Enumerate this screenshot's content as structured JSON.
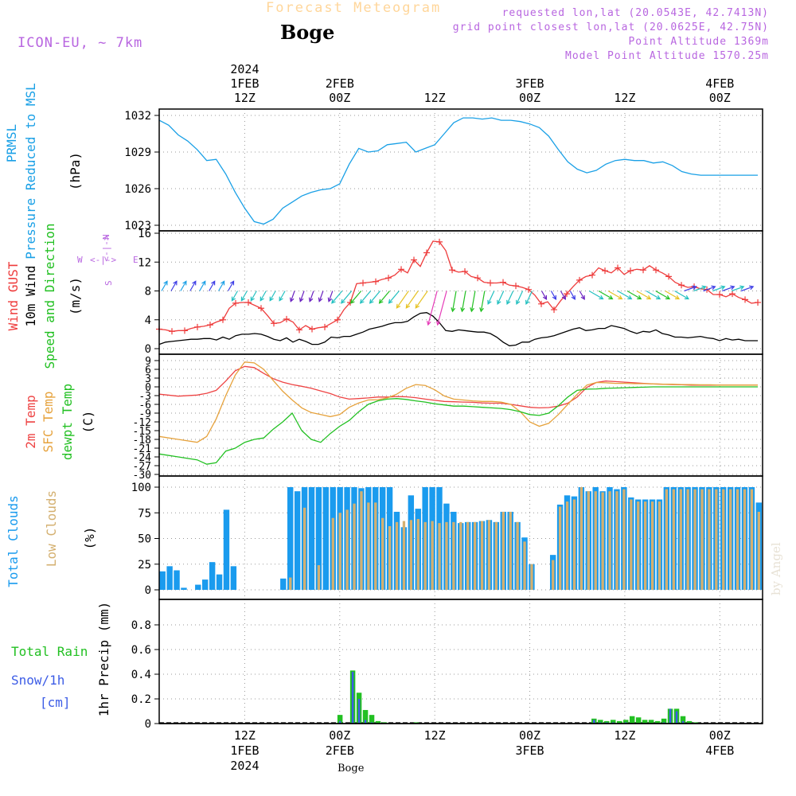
{
  "header": {
    "title": "Forecast Meteogram",
    "location": "Boge",
    "model": "ICON-EU, ~ 7km",
    "requested": "requested lon,lat (20.0543E, 42.7413N)",
    "grid_point": "grid point closest lon,lat (20.0625E, 42.75N)",
    "point_altitude": "Point Altitude 1369m",
    "model_altitude": "Model Point Altitude 1570.25m",
    "credit": "by Angel",
    "bottom_location": "Boge"
  },
  "colors": {
    "pressure": "#1aa0e6",
    "gust": "#ee3c3c",
    "wind": "#000000",
    "t2m": "#ee4444",
    "sfc": "#e6a23c",
    "dewpt": "#22c022",
    "total_clouds": "#1a9bee",
    "low_clouds": "#d4b070",
    "rain": "#22c022",
    "snow": "#3c5ce6",
    "grid": "#999999"
  },
  "chart_data": [
    {
      "type": "line",
      "title": "PRMSL Pressure Reduced to MSL",
      "ylabel_lines": [
        "PRMSL",
        "Pressure Reduced to MSL"
      ],
      "unit": "(hPa)",
      "ylim": [
        1022.5,
        1032.5
      ],
      "yticks": [
        1023,
        1026,
        1029,
        1032
      ],
      "series": [
        {
          "name": "PRMSL",
          "x_hours": [
            0,
            2,
            4,
            6,
            8,
            10,
            12,
            14,
            16,
            18,
            20,
            22,
            24,
            26,
            28,
            30,
            32,
            34,
            36,
            38,
            40,
            42,
            44,
            46,
            48,
            50,
            52,
            54,
            56,
            58,
            60,
            62,
            64,
            66,
            68,
            70,
            72,
            74,
            76,
            78,
            80,
            82,
            84,
            86,
            88,
            90,
            92,
            94,
            96,
            98,
            100,
            102,
            104,
            106,
            108,
            110,
            112,
            114,
            116,
            118,
            120,
            122,
            124,
            126
          ],
          "values": [
            1031.6,
            1031.2,
            1030.4,
            1029.9,
            1029.2,
            1028.3,
            1028.4,
            1027.2,
            1025.7,
            1024.4,
            1023.3,
            1023.1,
            1023.5,
            1024.4,
            1024.9,
            1025.4,
            1025.7,
            1025.9,
            1026.0,
            1026.4,
            1028.0,
            1029.3,
            1029.0,
            1029.1,
            1029.6,
            1029.7,
            1029.8,
            1029.0,
            1029.3,
            1029.6,
            1030.5,
            1031.4,
            1031.8,
            1031.8,
            1031.7,
            1031.8,
            1031.6,
            1031.6,
            1031.5,
            1031.3,
            1031.0,
            1030.3,
            1029.2,
            1028.2,
            1027.6,
            1027.3,
            1027.5,
            1028.0,
            1028.3,
            1028.4,
            1028.3,
            1028.3,
            1028.1,
            1028.2,
            1027.9,
            1027.4,
            1027.2,
            1027.1,
            1027.1,
            1027.1,
            1027.1,
            1027.1,
            1027.1,
            1027.1
          ]
        }
      ]
    },
    {
      "type": "line",
      "title": "Wind GUST / 10m Wind Speed and Direction",
      "ylabel_lines": [
        "Wind GUST",
        "10m Wind",
        "Speed and Direction"
      ],
      "unit": "(m/s)",
      "compass": {
        "n": "N",
        "s": "S",
        "e": "E",
        "w": "W"
      },
      "ylim": [
        -0.3,
        16
      ],
      "yticks": [
        0,
        4,
        8,
        12,
        16
      ],
      "series": [
        {
          "name": "Wind GUST",
          "values": [
            2.7,
            2.6,
            2.4,
            2.5,
            2.5,
            2.8,
            3.0,
            3.1,
            3.3,
            3.7,
            4.0,
            5.6,
            6.3,
            6.4,
            6.4,
            6.0,
            5.6,
            4.6,
            3.5,
            3.6,
            4.1,
            3.7,
            2.6,
            3.2,
            2.7,
            2.9,
            3.0,
            3.5,
            4.0,
            5.4,
            6.4,
            9.0,
            9.1,
            9.2,
            9.3,
            9.6,
            9.8,
            10.2,
            11.0,
            10.5,
            12.3,
            11.4,
            13.3,
            14.9,
            14.8,
            13.6,
            10.9,
            10.6,
            10.7,
            10.0,
            9.8,
            9.2,
            9.1,
            9.1,
            9.2,
            8.8,
            8.7,
            8.5,
            8.2,
            7.4,
            6.2,
            6.5,
            5.4,
            6.6,
            7.6,
            8.6,
            9.5,
            10.0,
            10.2,
            11.2,
            10.8,
            10.5,
            11.2,
            10.3,
            10.8,
            11.0,
            10.9,
            11.5,
            10.9,
            10.5,
            10.0,
            9.2,
            8.8,
            8.5,
            8.6,
            8.3,
            8.2,
            7.5,
            7.5,
            7.2,
            7.6,
            7.1,
            6.8,
            6.3,
            6.4
          ]
        },
        {
          "name": "10m Wind",
          "values": [
            0.6,
            0.9,
            1.0,
            1.1,
            1.2,
            1.3,
            1.3,
            1.4,
            1.4,
            1.2,
            1.6,
            1.3,
            1.8,
            2.0,
            2.0,
            2.1,
            2.0,
            1.7,
            1.3,
            1.1,
            1.5,
            0.9,
            1.3,
            1.0,
            0.6,
            0.6,
            0.9,
            1.6,
            1.5,
            1.7,
            1.7,
            2.0,
            2.3,
            2.7,
            2.9,
            3.1,
            3.4,
            3.6,
            3.6,
            3.8,
            4.4,
            4.9,
            5.0,
            4.5,
            3.6,
            2.5,
            2.4,
            2.6,
            2.5,
            2.4,
            2.3,
            2.3,
            2.1,
            1.6,
            0.9,
            0.4,
            0.5,
            0.9,
            0.9,
            1.3,
            1.5,
            1.6,
            1.8,
            2.1,
            2.4,
            2.7,
            2.9,
            2.5,
            2.6,
            2.8,
            2.8,
            3.2,
            3.0,
            2.8,
            2.4,
            2.1,
            2.4,
            2.3,
            2.6,
            2.1,
            1.9,
            1.6,
            1.6,
            1.5,
            1.6,
            1.7,
            1.5,
            1.4,
            1.1,
            1.4,
            1.2,
            1.3,
            1.1,
            1.1,
            1.1
          ]
        }
      ]
    },
    {
      "type": "line",
      "title": "2m Temp / SFC Temp / dewpt Temp",
      "ylabel_lines": [
        "2m Temp",
        "SFC Temp",
        "dewpt Temp"
      ],
      "unit": "(C)",
      "ylim": [
        -30,
        10.5
      ],
      "yticks": [
        9,
        6,
        3,
        0,
        -3,
        -6,
        -9,
        -12,
        -15,
        -18,
        -21,
        -24,
        -27,
        -30
      ],
      "x_hours": [
        0,
        4,
        8,
        10,
        12,
        14,
        16,
        18,
        20,
        22,
        24,
        26,
        28,
        30,
        32,
        34,
        36,
        38,
        40,
        42,
        44,
        46,
        48,
        50,
        52,
        54,
        56,
        58,
        60,
        62,
        64,
        66,
        68,
        70,
        72,
        74,
        76,
        78,
        80,
        82,
        84,
        86,
        88,
        90,
        92,
        94,
        96,
        98,
        100,
        102,
        104,
        106,
        108,
        110,
        112,
        114,
        116,
        118,
        120,
        122,
        124,
        126
      ],
      "series": [
        {
          "name": "2m Temp",
          "values": [
            -2.5,
            -3.2,
            -2.8,
            -2.2,
            -1.2,
            2.0,
            5.5,
            7.0,
            6.6,
            4.6,
            2.8,
            1.6,
            0.8,
            0.2,
            -0.5,
            -1.4,
            -2.3,
            -3.5,
            -4.2,
            -4.0,
            -3.8,
            -3.5,
            -3.5,
            -3.3,
            -3.4,
            -3.7,
            -4.2,
            -4.6,
            -5.0,
            -5.1,
            -5.2,
            -5.3,
            -5.5,
            -5.6,
            -5.6,
            -6.0,
            -6.5,
            -7.0,
            -7.2,
            -7.1,
            -6.6,
            -5.6,
            -3.5,
            -0.2,
            1.5,
            2.0,
            1.8,
            1.6,
            1.4,
            1.2,
            1.0,
            0.9,
            0.8,
            0.7,
            0.6,
            0.6,
            0.6,
            0.6,
            0.6,
            0.6,
            0.6,
            0.6
          ]
        },
        {
          "name": "SFC Temp",
          "values": [
            -17.0,
            -18.0,
            -19.0,
            -17.0,
            -11.0,
            -3.0,
            4.0,
            8.5,
            8.2,
            6.0,
            2.2,
            -1.5,
            -4.5,
            -7.2,
            -8.8,
            -9.5,
            -10.2,
            -9.5,
            -7.0,
            -5.5,
            -4.5,
            -4.4,
            -3.8,
            -2.5,
            -0.5,
            0.8,
            0.5,
            -1.0,
            -3.1,
            -4.2,
            -4.5,
            -4.8,
            -5.0,
            -5.0,
            -5.2,
            -6.0,
            -8.5,
            -12.0,
            -13.5,
            -12.5,
            -9.5,
            -6.0,
            -2.5,
            0.6,
            1.5,
            1.4,
            1.2,
            1.2,
            1.1,
            1.1,
            1.0,
            0.9,
            0.9,
            0.8,
            0.8,
            0.7,
            0.7,
            0.6,
            0.6,
            0.6,
            0.6,
            0.6
          ]
        },
        {
          "name": "dewpt Temp",
          "values": [
            -23.0,
            -24.0,
            -25.0,
            -26.5,
            -26.0,
            -22.0,
            -21.0,
            -19.0,
            -18.0,
            -17.5,
            -14.5,
            -12.0,
            -9.0,
            -15.0,
            -18.0,
            -19.0,
            -16.0,
            -13.5,
            -11.5,
            -8.5,
            -6.0,
            -4.8,
            -4.2,
            -4.0,
            -4.3,
            -4.8,
            -5.2,
            -5.8,
            -6.2,
            -6.6,
            -6.6,
            -6.8,
            -7.0,
            -7.2,
            -7.4,
            -7.8,
            -8.5,
            -9.5,
            -9.8,
            -9.0,
            -6.5,
            -3.5,
            -1.2,
            -0.8,
            -0.7,
            -0.5,
            -0.4,
            -0.3,
            -0.2,
            -0.1,
            0.0,
            0.0,
            0.0,
            0.0,
            0.0,
            0.0,
            0.0,
            0.0,
            0.0,
            0.0,
            0.0,
            0.0
          ]
        }
      ]
    },
    {
      "type": "bar",
      "title": "Total Clouds / Low Clouds",
      "ylabel_lines": [
        "Total Clouds",
        "Low Clouds"
      ],
      "unit": "(%)",
      "ylim": [
        -5,
        107
      ],
      "yticks": [
        0,
        25,
        50,
        75,
        100
      ],
      "series": [
        {
          "name": "Total Clouds",
          "values": [
            18,
            23,
            19,
            2,
            0,
            5,
            10,
            27,
            15,
            78,
            23,
            0,
            0,
            0,
            0,
            0,
            0,
            11,
            100,
            96,
            100,
            100,
            100,
            100,
            100,
            100,
            100,
            100,
            99,
            100,
            100,
            100,
            100,
            76,
            61,
            92,
            79,
            100,
            100,
            100,
            84,
            76,
            65,
            66,
            66,
            67,
            68,
            66,
            76,
            76,
            66,
            51,
            25,
            0,
            0,
            34,
            83,
            92,
            91,
            100,
            96,
            100,
            96,
            100,
            98,
            100,
            90,
            88,
            88,
            88,
            88,
            100,
            100,
            100,
            100,
            100,
            100,
            100,
            100,
            100,
            100,
            100,
            100,
            100,
            85
          ]
        },
        {
          "name": "Low Clouds",
          "values": [
            0,
            0,
            0,
            0,
            0,
            0,
            0,
            0,
            0,
            0,
            0,
            0,
            0,
            0,
            0,
            0,
            0,
            0,
            12,
            0,
            80,
            0,
            24,
            0,
            70,
            75,
            78,
            84,
            96,
            85,
            85,
            70,
            62,
            66,
            67,
            68,
            69,
            66,
            67,
            65,
            66,
            66,
            66,
            66,
            66,
            67,
            68,
            66,
            76,
            76,
            66,
            47,
            25,
            0,
            0,
            29,
            81,
            86,
            88,
            100,
            96,
            96,
            95,
            96,
            96,
            98,
            88,
            86,
            86,
            86,
            86,
            98,
            98,
            98,
            98,
            98,
            98,
            98,
            98,
            98,
            98,
            98,
            98,
            98,
            76
          ]
        }
      ]
    },
    {
      "type": "bar",
      "title": "Total Rain / Snow 1hr Precip",
      "ylabel_lines": [
        "1hr Precip (mm)"
      ],
      "legend_lines": [
        "Total  Rain",
        "Snow/1h",
        "[cm]"
      ],
      "ylim": [
        0,
        0.98
      ],
      "yticks": [
        0,
        0.2,
        0.4,
        0.6,
        0.8
      ],
      "series": [
        {
          "name": "Total Rain",
          "values": [
            0,
            0,
            0,
            0,
            0,
            0,
            0,
            0,
            0,
            0,
            0,
            0,
            0,
            0,
            0,
            0,
            0,
            0,
            0,
            0,
            0,
            0,
            0,
            0,
            0,
            0,
            0,
            0,
            0.07,
            0,
            0.43,
            0.25,
            0.11,
            0.07,
            0.02,
            0.01,
            0,
            0,
            0,
            0,
            0.01,
            0,
            0,
            0,
            0,
            0,
            0,
            0,
            0,
            0,
            0,
            0,
            0,
            0,
            0,
            0,
            0,
            0,
            0,
            0,
            0,
            0,
            0,
            0,
            0,
            0,
            0,
            0,
            0.04,
            0.03,
            0.02,
            0.03,
            0.02,
            0.03,
            0.06,
            0.05,
            0.03,
            0.03,
            0.02,
            0.04,
            0.12,
            0.12,
            0.06,
            0.02,
            0.01,
            0,
            0,
            0,
            0,
            0,
            0,
            0,
            0,
            0,
            0
          ]
        },
        {
          "name": "Snow/1h",
          "values": [
            0,
            0,
            0,
            0,
            0,
            0,
            0,
            0,
            0,
            0,
            0,
            0,
            0,
            0,
            0,
            0,
            0,
            0,
            0,
            0,
            0,
            0,
            0,
            0,
            0,
            0,
            0,
            0,
            0.02,
            0,
            0.42,
            0.2,
            0.03,
            0.01,
            0,
            0,
            0,
            0,
            0,
            0,
            0,
            0,
            0,
            0,
            0,
            0,
            0,
            0,
            0,
            0,
            0,
            0,
            0,
            0,
            0,
            0,
            0,
            0,
            0,
            0,
            0,
            0,
            0,
            0,
            0,
            0,
            0,
            0,
            0.03,
            0.01,
            0.01,
            0.01,
            0,
            0.01,
            0,
            0,
            0,
            0,
            0,
            0.01,
            0.12,
            0.1,
            0.02,
            0,
            0,
            0,
            0,
            0,
            0,
            0,
            0,
            0,
            0,
            0,
            0
          ]
        }
      ]
    }
  ],
  "time_axis": {
    "x_range_hours": [
      0,
      127
    ],
    "ticks": [
      {
        "hour": 18,
        "top": [
          "2024",
          "1FEB",
          "12Z"
        ],
        "bottom": [
          "12Z",
          "1FEB",
          "2024"
        ]
      },
      {
        "hour": 38,
        "top": [
          "2FEB",
          "00Z"
        ],
        "bottom": [
          "00Z",
          "2FEB"
        ]
      },
      {
        "hour": 58,
        "top": [
          "12Z"
        ],
        "bottom": [
          "12Z"
        ]
      },
      {
        "hour": 78,
        "top": [
          "3FEB",
          "00Z"
        ],
        "bottom": [
          "00Z",
          "3FEB"
        ]
      },
      {
        "hour": 98,
        "top": [
          "12Z"
        ],
        "bottom": [
          "12Z"
        ]
      },
      {
        "hour": 118,
        "top": [
          "4FEB",
          "00Z"
        ],
        "bottom": [
          "00Z",
          "4FEB"
        ]
      }
    ]
  }
}
